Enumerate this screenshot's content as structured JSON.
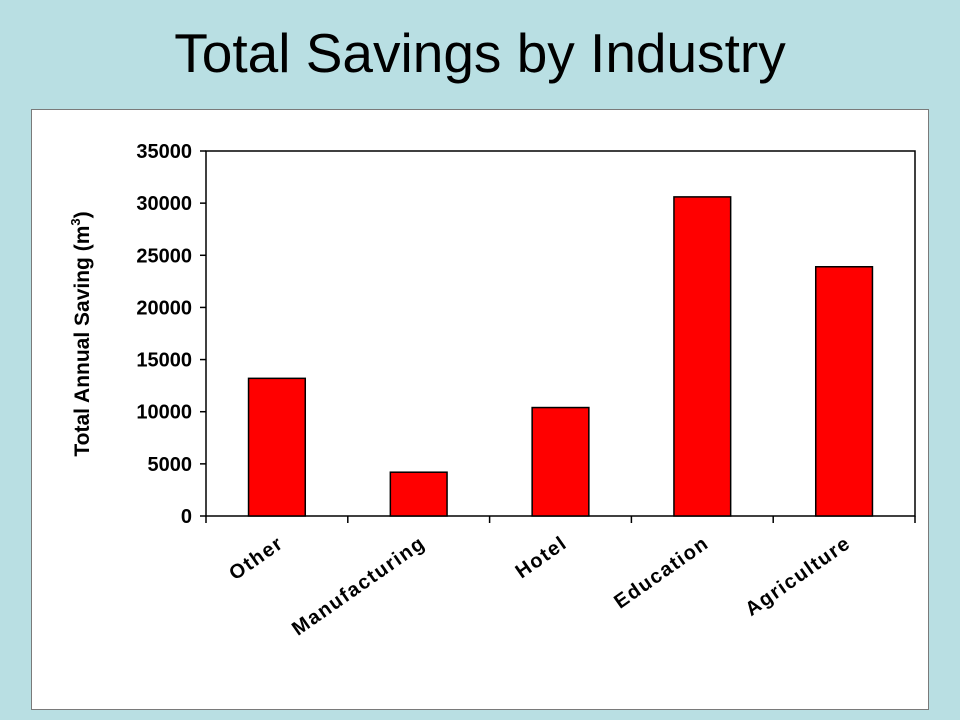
{
  "slide": {
    "title": "Total Savings by Industry"
  },
  "chart_data": {
    "type": "bar",
    "title": "",
    "categories": [
      "Other",
      "Manufacturing",
      "Hotel",
      "Education",
      "Agriculture"
    ],
    "series": [
      {
        "values": [
          13200,
          4200,
          10400,
          30600,
          23900
        ]
      }
    ],
    "ylabel": "Total Annual Saving (m",
    "ylabel_superscript": "3",
    "ylabel_suffix": ")",
    "xlabel": "",
    "ylim": [
      0,
      35000
    ],
    "yticks": [
      0,
      5000,
      10000,
      15000,
      20000,
      25000,
      30000,
      35000
    ],
    "bar_color": "#ff0000",
    "grid": false,
    "legend": "none"
  }
}
